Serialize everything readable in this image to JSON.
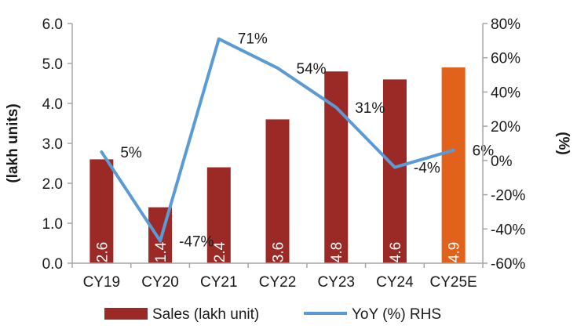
{
  "chart_data": {
    "type": "bar",
    "title": "",
    "categories": [
      "CY19",
      "CY20",
      "CY21",
      "CY22",
      "CY23",
      "CY24",
      "CY25E"
    ],
    "ylabel": "(lakh units)",
    "y2label": "(%)",
    "ylim": [
      0,
      6
    ],
    "y2lim": [
      -60,
      80
    ],
    "yticks": [
      "0.0",
      "1.0",
      "2.0",
      "3.0",
      "4.0",
      "5.0",
      "6.0"
    ],
    "y2ticks": [
      "-60%",
      "-40%",
      "-20%",
      "0%",
      "20%",
      "40%",
      "60%",
      "80%"
    ],
    "grid": false,
    "legend_position": "bottom",
    "series": [
      {
        "name": "Sales (lakh unit)",
        "type": "bar",
        "axis": "left",
        "values": [
          2.6,
          1.4,
          2.4,
          3.6,
          4.8,
          4.6,
          4.9
        ],
        "labels": [
          "2.6",
          "1.4",
          "2.4",
          "3.6",
          "4.8",
          "4.6",
          "4.9"
        ],
        "color": "#9b2a26",
        "highlight_color": "#e2621b",
        "highlight_index": 6
      },
      {
        "name": "YoY (%) RHS",
        "type": "line",
        "axis": "right",
        "values": [
          5,
          -47,
          71,
          54,
          31,
          -4,
          6
        ],
        "labels": [
          "5%",
          "-47%",
          "71%",
          "54%",
          "31%",
          "-4%",
          "6%"
        ],
        "color": "#5b9bd5"
      }
    ]
  }
}
